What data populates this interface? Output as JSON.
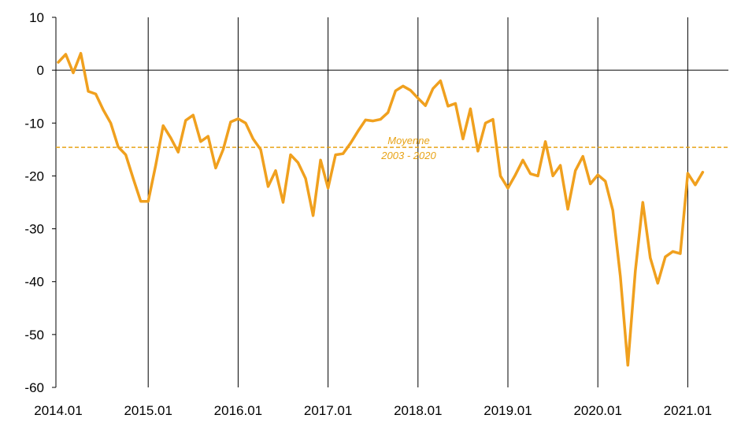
{
  "chart_data": {
    "type": "line",
    "title": "",
    "xlabel": "",
    "ylabel": "",
    "ylim": [
      -60,
      10
    ],
    "xlim": [
      "2014-01",
      "2021-03"
    ],
    "yticks": [
      10,
      0,
      -10,
      -20,
      -30,
      -40,
      -50,
      -60
    ],
    "ytick_labels": [
      "10",
      "0",
      "-10",
      "-20",
      "-30",
      "-40",
      "-50",
      "-60"
    ],
    "xticks": [
      "2014.01",
      "2015.01",
      "2016.01",
      "2017.01",
      "2018.01",
      "2019.01",
      "2020.01",
      "2021.01"
    ],
    "grid": "vertical lines at each January",
    "series": [
      {
        "color": "#F0A01E",
        "x": [
          "2014-01",
          "2014-02",
          "2014-03",
          "2014-04",
          "2014-05",
          "2014-06",
          "2014-07",
          "2014-08",
          "2014-09",
          "2014-10",
          "2014-11",
          "2014-12",
          "2015-01",
          "2015-02",
          "2015-03",
          "2015-04",
          "2015-05",
          "2015-06",
          "2015-07",
          "2015-08",
          "2015-09",
          "2015-10",
          "2015-11",
          "2015-12",
          "2016-01",
          "2016-02",
          "2016-03",
          "2016-04",
          "2016-05",
          "2016-06",
          "2016-07",
          "2016-08",
          "2016-09",
          "2016-10",
          "2016-11",
          "2016-12",
          "2017-01",
          "2017-02",
          "2017-03",
          "2017-04",
          "2017-05",
          "2017-06",
          "2017-07",
          "2017-08",
          "2017-09",
          "2017-10",
          "2017-11",
          "2017-12",
          "2018-01",
          "2018-02",
          "2018-03",
          "2018-04",
          "2018-05",
          "2018-06",
          "2018-07",
          "2018-08",
          "2018-09",
          "2018-10",
          "2018-11",
          "2018-12",
          "2019-01",
          "2019-02",
          "2019-03",
          "2019-04",
          "2019-05",
          "2019-06",
          "2019-07",
          "2019-08",
          "2019-09",
          "2019-10",
          "2019-11",
          "2019-12",
          "2020-01",
          "2020-02",
          "2020-03",
          "2020-04",
          "2020-05",
          "2020-06",
          "2020-07",
          "2020-08",
          "2020-09",
          "2020-10",
          "2020-11",
          "2020-12",
          "2021-01",
          "2021-02",
          "2021-03"
        ],
        "values": [
          1.5,
          3.0,
          -0.5,
          3.2,
          -4.0,
          -4.5,
          -7.5,
          -10.0,
          -14.5,
          -16.0,
          -20.5,
          -24.8,
          -24.8,
          -18.0,
          -10.5,
          -12.8,
          -15.5,
          -9.5,
          -8.5,
          -13.5,
          -12.5,
          -18.5,
          -15.0,
          -9.8,
          -9.2,
          -10.0,
          -13.0,
          -15.0,
          -22.0,
          -19.0,
          -25.0,
          -16.0,
          -17.5,
          -20.5,
          -27.5,
          -17.0,
          -22.3,
          -16.0,
          -15.8,
          -13.8,
          -11.5,
          -9.4,
          -9.6,
          -9.3,
          -8.0,
          -3.9,
          -3.0,
          -3.8,
          -5.3,
          -6.7,
          -3.5,
          -2.0,
          -6.8,
          -6.3,
          -13.0,
          -7.3,
          -15.3,
          -10.0,
          -9.3,
          -20.0,
          -22.3,
          -19.8,
          -17.0,
          -19.6,
          -20.0,
          -13.5,
          -20.0,
          -18.0,
          -26.3,
          -19.0,
          -16.3,
          -21.5,
          -19.8,
          -21.0,
          -26.5,
          -39.0,
          -55.8,
          -38.0,
          -25.0,
          -35.5,
          -40.3,
          -35.3,
          -34.3,
          -34.7,
          -19.5,
          -21.7,
          -19.3
        ]
      }
    ],
    "reference_line": {
      "value": -14.6,
      "color": "#E8A317",
      "style": "dashed",
      "label_line1": "Moyenne",
      "label_line2": "2003 - 2020"
    }
  }
}
